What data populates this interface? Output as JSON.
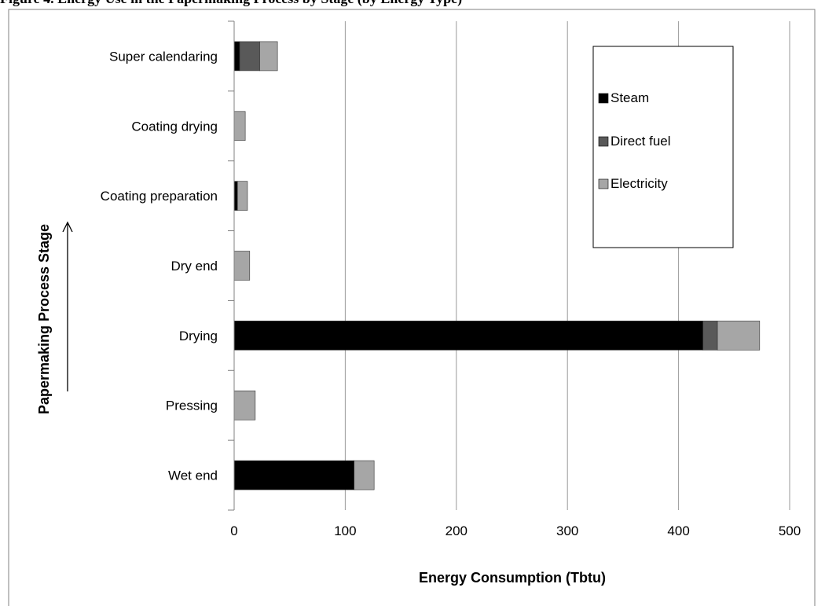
{
  "header_text": "Figure 4. Energy Use in the Papermaking Process by Stage (by Energy Type)",
  "chart_data": {
    "type": "bar",
    "orientation": "horizontal",
    "stacked": true,
    "categories": [
      "Wet end",
      "Pressing",
      "Drying",
      "Dry end",
      "Coating preparation",
      "Coating drying",
      "Super calendaring"
    ],
    "series": [
      {
        "name": "Steam",
        "color": "#000000",
        "values": [
          108,
          0,
          422,
          0,
          3,
          0,
          5
        ]
      },
      {
        "name": "Direct fuel",
        "color": "#595959",
        "values": [
          0,
          0,
          13,
          0,
          0,
          0,
          18
        ]
      },
      {
        "name": "Electricity",
        "color": "#a6a6a6",
        "values": [
          18,
          19,
          38,
          14,
          9,
          10,
          16
        ]
      }
    ],
    "xlabel": "Energy Consumption (Tbtu)",
    "ylabel": "Papermaking  Process  Stage",
    "xlim": [
      0,
      500
    ],
    "xticks": [
      "0",
      "100",
      "200",
      "300",
      "400",
      "500"
    ],
    "grid": "vertical",
    "legend_position": "top-right",
    "arrow": "up"
  }
}
